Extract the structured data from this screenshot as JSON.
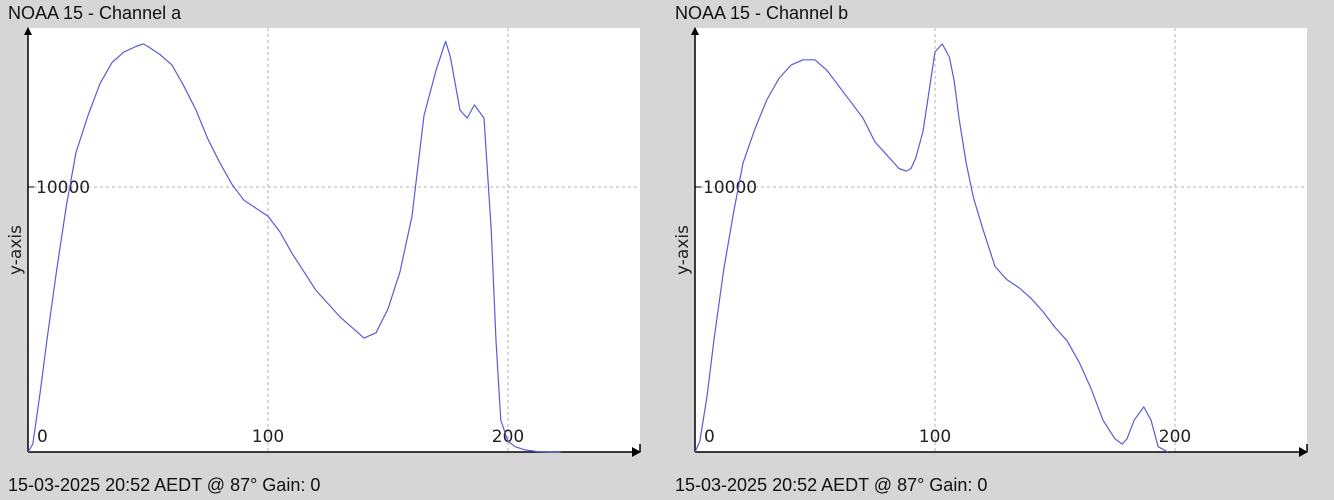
{
  "charts": [
    {
      "title": "NOAA 15 - Channel a",
      "footer": "15-03-2025 20:52 AEDT @ 87° Gain: 0"
    },
    {
      "title": "NOAA 15 - Channel b",
      "footer": "15-03-2025 20:52 AEDT @ 87° Gain: 0"
    }
  ],
  "colors": {
    "background": "#d6d6d6",
    "plot_background": "#ffffff",
    "line": "#5b5bd6",
    "grid": "#b0b0b0",
    "axis": "#000000"
  },
  "chart_data": [
    {
      "type": "line",
      "title": "NOAA 15 - Channel a",
      "xlabel": "",
      "ylabel": "y-axis",
      "xlim": [
        0,
        255
      ],
      "ylim": [
        0,
        16000
      ],
      "x_ticks": [
        0,
        100,
        200
      ],
      "x_tick_labels": [
        "0",
        "100",
        "200"
      ],
      "y_ticks": [
        10000
      ],
      "y_tick_labels": [
        "10000"
      ],
      "grid": true,
      "series": [
        {
          "x": [
            0,
            2,
            5,
            8,
            12,
            16,
            20,
            25,
            30,
            35,
            40,
            45,
            48,
            50,
            55,
            60,
            65,
            70,
            75,
            80,
            85,
            90,
            95,
            100,
            105,
            110,
            115,
            120,
            125,
            130,
            135,
            140,
            145,
            150,
            155,
            160,
            165,
            170,
            174,
            176,
            178,
            180,
            183,
            186,
            190,
            193,
            195,
            197,
            200,
            203,
            207,
            212,
            218,
            222
          ],
          "y": [
            0,
            300,
            2200,
            4300,
            6900,
            9300,
            11300,
            12700,
            13900,
            14700,
            15100,
            15300,
            15400,
            15300,
            15000,
            14600,
            13800,
            12900,
            11800,
            10900,
            10100,
            9500,
            9200,
            8900,
            8300,
            7500,
            6800,
            6100,
            5600,
            5100,
            4700,
            4300,
            4500,
            5400,
            6800,
            8900,
            12700,
            14400,
            15500,
            14900,
            13900,
            12900,
            12600,
            13100,
            12600,
            8400,
            4200,
            1200,
            400,
            200,
            80,
            20,
            5,
            0
          ]
        }
      ]
    },
    {
      "type": "line",
      "title": "NOAA 15 - Channel b",
      "xlabel": "",
      "ylabel": "y-axis",
      "xlim": [
        0,
        255
      ],
      "ylim": [
        0,
        16000
      ],
      "x_ticks": [
        0,
        100,
        200
      ],
      "x_tick_labels": [
        "0",
        "100",
        "200"
      ],
      "y_ticks": [
        10000
      ],
      "y_tick_labels": [
        "10000"
      ],
      "grid": true,
      "series": [
        {
          "x": [
            0,
            2,
            5,
            8,
            12,
            16,
            20,
            25,
            30,
            35,
            40,
            45,
            50,
            55,
            60,
            65,
            70,
            75,
            80,
            85,
            88,
            90,
            92,
            95,
            98,
            100,
            103,
            106,
            108,
            110,
            113,
            116,
            120,
            125,
            130,
            135,
            140,
            145,
            150,
            155,
            160,
            165,
            170,
            175,
            178,
            180,
            183,
            187,
            190,
            193,
            197
          ],
          "y": [
            0,
            400,
            2100,
            4300,
            6900,
            9000,
            10900,
            12200,
            13300,
            14100,
            14600,
            14800,
            14800,
            14400,
            13800,
            13200,
            12600,
            11700,
            11200,
            10700,
            10600,
            10700,
            11100,
            12100,
            13900,
            15100,
            15400,
            14900,
            14000,
            12600,
            10900,
            9600,
            8400,
            7000,
            6500,
            6200,
            5800,
            5300,
            4700,
            4200,
            3400,
            2400,
            1200,
            500,
            300,
            500,
            1200,
            1700,
            1200,
            200,
            0
          ]
        }
      ]
    }
  ]
}
